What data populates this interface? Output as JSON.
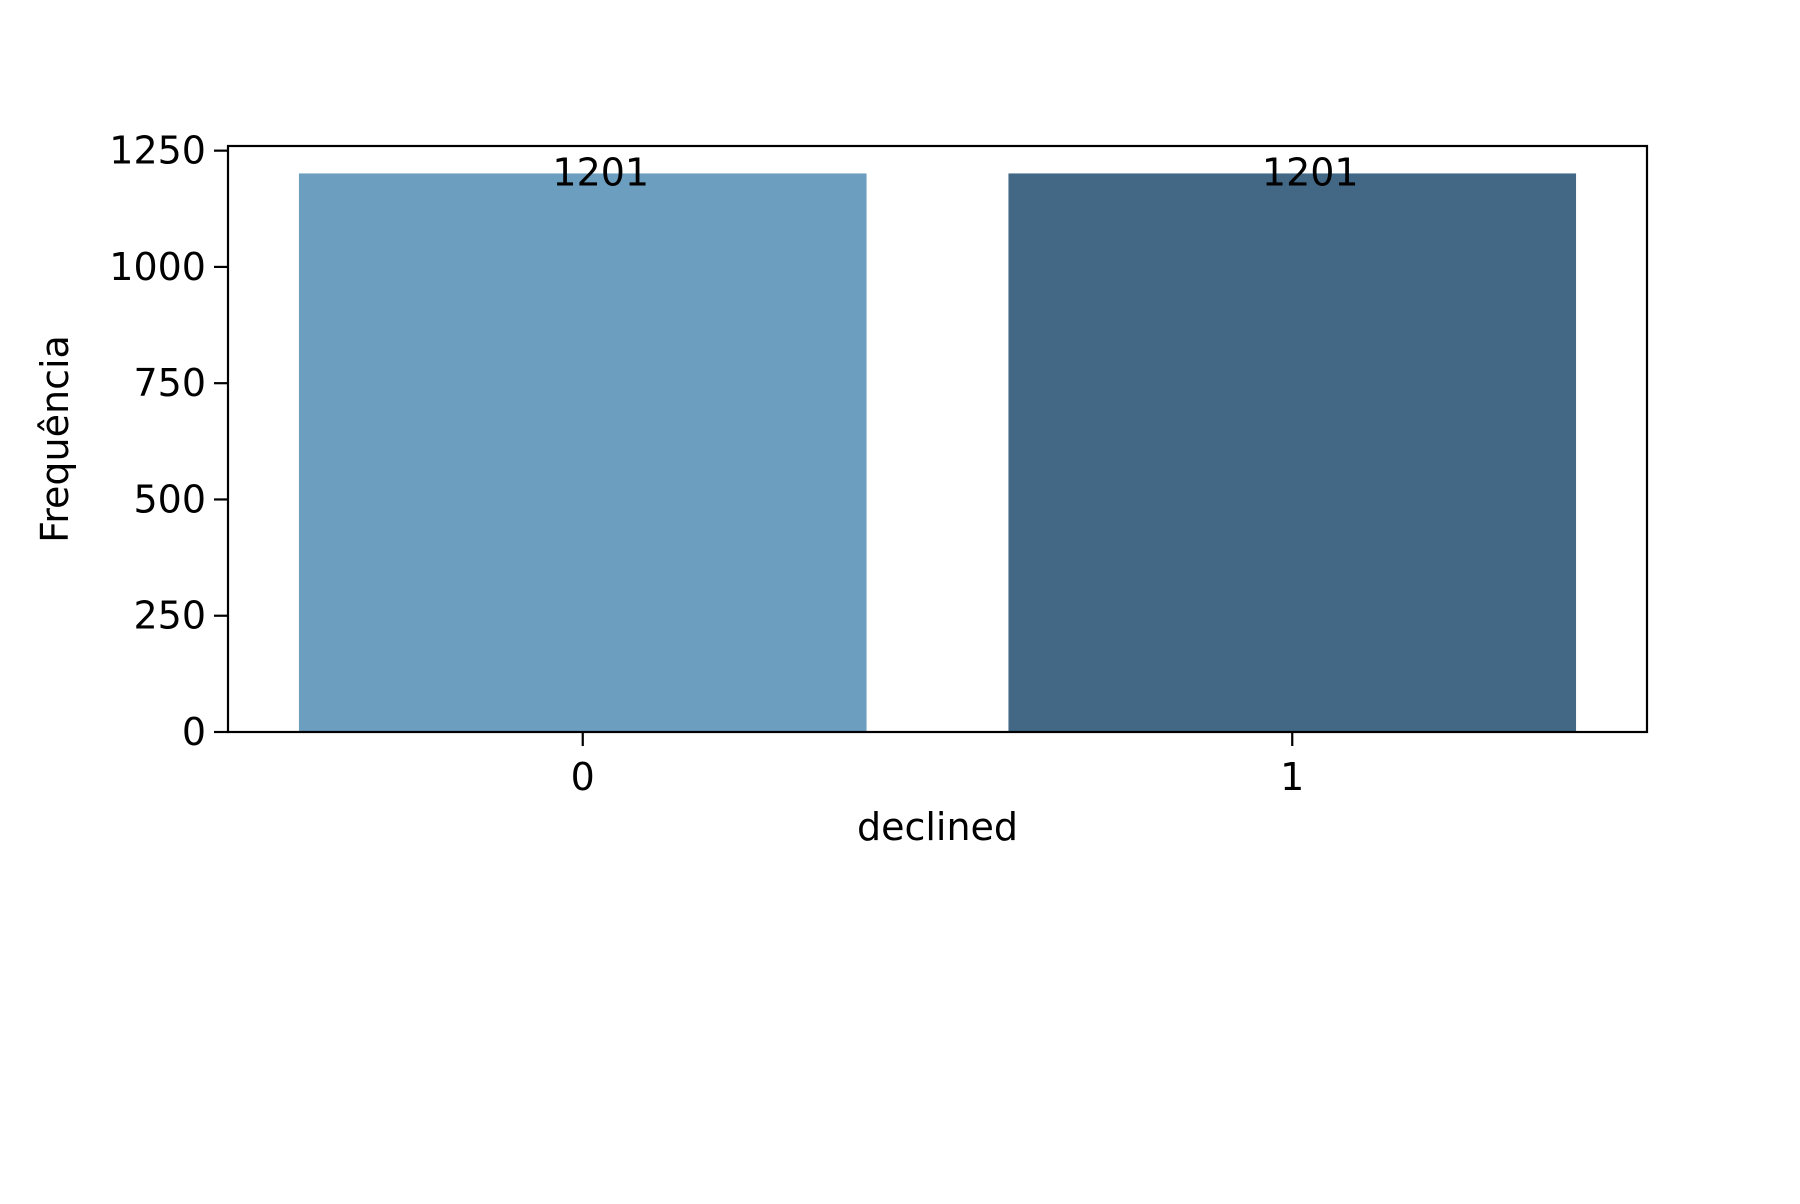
{
  "chart_data": {
    "type": "bar",
    "categories": [
      "0",
      "1"
    ],
    "values": [
      1201,
      1201
    ],
    "data_labels": [
      "1201",
      "1201"
    ],
    "title": "",
    "xlabel": "declined",
    "ylabel": "Frequência",
    "ylim": [
      0,
      1260
    ],
    "yticks": [
      0,
      250,
      500,
      750,
      1000,
      1250
    ],
    "ytick_labels": [
      "0",
      "250",
      "500",
      "750",
      "1000",
      "1250"
    ],
    "grid": false,
    "legend": "none",
    "colors": [
      "#6c9ebf",
      "#426885"
    ]
  }
}
